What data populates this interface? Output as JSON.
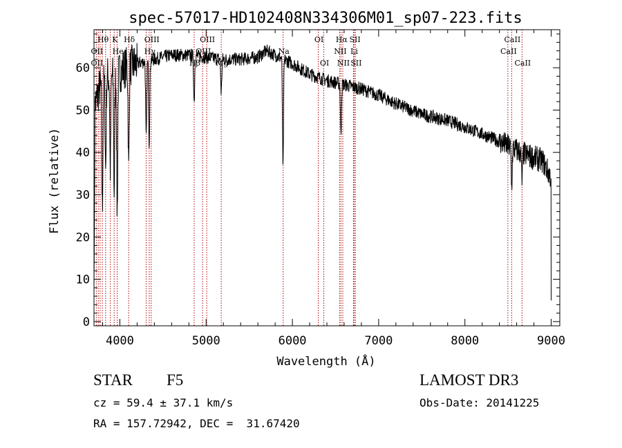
{
  "chart_data": {
    "type": "line",
    "title": "spec-57017-HD102408N334306M01_sp07-223.fits",
    "xlabel": "Wavelength (Å)",
    "ylabel": "Flux (relative)",
    "xlim": [
      3700,
      9100
    ],
    "ylim": [
      -1,
      69
    ],
    "xticks": [
      4000,
      5000,
      6000,
      7000,
      8000,
      9000
    ],
    "xtick_labels": [
      "4000",
      "5000",
      "6000",
      "7000",
      "8000",
      "9000"
    ],
    "yticks": [
      0,
      10,
      20,
      30,
      40,
      50,
      60
    ],
    "ytick_labels": [
      "0",
      "10",
      "20",
      "30",
      "40",
      "50",
      "60"
    ],
    "continuum": [
      [
        3700,
        50
      ],
      [
        3760,
        55
      ],
      [
        3850,
        58
      ],
      [
        3950,
        58
      ],
      [
        4050,
        60
      ],
      [
        4200,
        61
      ],
      [
        4400,
        62
      ],
      [
        4600,
        63
      ],
      [
        4800,
        63
      ],
      [
        5000,
        62.5
      ],
      [
        5200,
        62
      ],
      [
        5400,
        62
      ],
      [
        5600,
        62.5
      ],
      [
        5700,
        64
      ],
      [
        5800,
        63
      ],
      [
        6000,
        61
      ],
      [
        6200,
        58.5
      ],
      [
        6400,
        57
      ],
      [
        6600,
        56
      ],
      [
        6800,
        55
      ],
      [
        7000,
        53.5
      ],
      [
        7200,
        51.5
      ],
      [
        7500,
        49
      ],
      [
        7800,
        47.5
      ],
      [
        8000,
        46
      ],
      [
        8300,
        43.5
      ],
      [
        8500,
        41.5
      ],
      [
        8700,
        39.5
      ],
      [
        8900,
        38
      ],
      [
        9000,
        34
      ]
    ],
    "absorption_dips": [
      {
        "wavelength": 3797,
        "flux": 26
      },
      {
        "wavelength": 3835,
        "flux": 36
      },
      {
        "wavelength": 3889,
        "flux": 36
      },
      {
        "wavelength": 3934,
        "flux": 31
      },
      {
        "wavelength": 3969,
        "flux": 26
      },
      {
        "wavelength": 4102,
        "flux": 36
      },
      {
        "wavelength": 4305,
        "flux": 43
      },
      {
        "wavelength": 4340,
        "flux": 42
      },
      {
        "wavelength": 4861,
        "flux": 52
      },
      {
        "wavelength": 5175,
        "flux": 54
      },
      {
        "wavelength": 5891,
        "flux": 36
      },
      {
        "wavelength": 6563,
        "flux": 44
      },
      {
        "wavelength": 8542,
        "flux": 32
      },
      {
        "wavelength": 8662,
        "flux": 33
      }
    ],
    "spectral_lines": [
      {
        "name": "OII",
        "wavelength": 3727,
        "row": 2
      },
      {
        "name": "Hθ",
        "wavelength": 3797,
        "row": 1
      },
      {
        "name": "OII",
        "wavelength": 3727,
        "row": 3
      },
      {
        "name": "K",
        "wavelength": 3934,
        "row": 1
      },
      {
        "name": "He",
        "wavelength": 3970,
        "row": 2
      },
      {
        "name": "Hδ",
        "wavelength": 4102,
        "row": 1
      },
      {
        "name": "Hγ",
        "wavelength": 4340,
        "row": 2
      },
      {
        "name": "OIII",
        "wavelength": 4363,
        "row": 1
      },
      {
        "name": "Hβ",
        "wavelength": 4861,
        "row": 3
      },
      {
        "name": "OIII",
        "wavelength": 5007,
        "row": 1
      },
      {
        "name": "OIII",
        "wavelength": 4959,
        "row": 2
      },
      {
        "name": "Mg",
        "wavelength": 5175,
        "row": 3
      },
      {
        "name": "Na",
        "wavelength": 5893,
        "row": 2
      },
      {
        "name": "OI",
        "wavelength": 6300,
        "row": 1
      },
      {
        "name": "OI",
        "wavelength": 6364,
        "row": 3
      },
      {
        "name": "Hα",
        "wavelength": 6563,
        "row": 1
      },
      {
        "name": "NII",
        "wavelength": 6548,
        "row": 2
      },
      {
        "name": "NII",
        "wavelength": 6584,
        "row": 3
      },
      {
        "name": "SII",
        "wavelength": 6717,
        "row": 1
      },
      {
        "name": "Li",
        "wavelength": 6708,
        "row": 2
      },
      {
        "name": "SII",
        "wavelength": 6731,
        "row": 3
      },
      {
        "name": "CaII",
        "wavelength": 8542,
        "row": 1
      },
      {
        "name": "CaII",
        "wavelength": 8498,
        "row": 2
      },
      {
        "name": "CaII",
        "wavelength": 8662,
        "row": 3
      }
    ],
    "line_marker_wavelengths": [
      3727,
      3750,
      3771,
      3797,
      3835,
      3889,
      3934,
      3969,
      4102,
      4305,
      4340,
      4363,
      4861,
      4959,
      5007,
      5175,
      5893,
      6300,
      6364,
      6548,
      6563,
      6584,
      6708,
      6717,
      6731,
      8498,
      8542,
      8662
    ]
  },
  "info": {
    "object_class": "STAR",
    "subclass": "F5",
    "survey": "LAMOST DR3",
    "redshift": "cz = 59.4 ± 37.1 km/s",
    "obs_date": "Obs-Date: 20141225",
    "coords": "RA = 157.72942, DEC =  31.67420"
  },
  "colors": {
    "axis": "#000000",
    "spectrum": "#000000",
    "line_marker": "#b00000"
  }
}
